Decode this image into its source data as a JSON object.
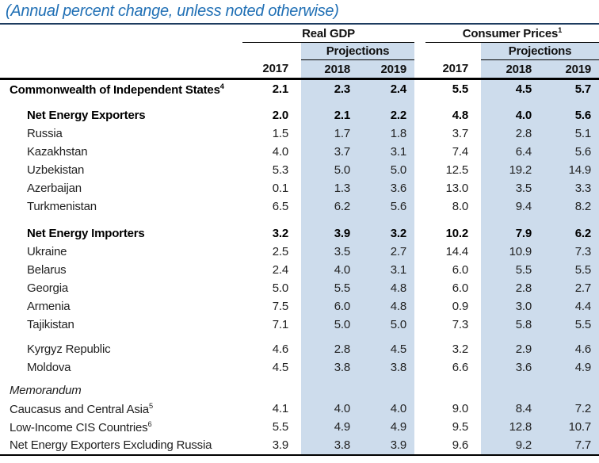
{
  "title": "(Annual percent change, unless noted otherwise)",
  "colors": {
    "title_accent": "#2170b5",
    "projection_band": "#cddcec",
    "rule": "#000000"
  },
  "header": {
    "groups": [
      {
        "label": "Real GDP",
        "sup": ""
      },
      {
        "label": "Consumer Prices",
        "sup": "1"
      }
    ],
    "projections": "Projections",
    "years": [
      "2017",
      "2018",
      "2019"
    ]
  },
  "rows": [
    {
      "label": "Commonwealth of Independent States",
      "sup": "4",
      "bold": true,
      "indent": false,
      "values": [
        "2.1",
        "2.3",
        "2.4",
        "5.5",
        "4.5",
        "5.7"
      ]
    },
    {
      "spacer": 10
    },
    {
      "label": "Net Energy Exporters",
      "sup": "",
      "bold": true,
      "indent": true,
      "values": [
        "2.0",
        "2.1",
        "2.2",
        "4.8",
        "4.0",
        "5.6"
      ]
    },
    {
      "label": "Russia",
      "sup": "",
      "indent": true,
      "values": [
        "1.5",
        "1.7",
        "1.8",
        "3.7",
        "2.8",
        "5.1"
      ]
    },
    {
      "label": "Kazakhstan",
      "sup": "",
      "indent": true,
      "values": [
        "4.0",
        "3.7",
        "3.1",
        "7.4",
        "6.4",
        "5.6"
      ]
    },
    {
      "label": "Uzbekistan",
      "sup": "",
      "indent": true,
      "values": [
        "5.3",
        "5.0",
        "5.0",
        "12.5",
        "19.2",
        "14.9"
      ]
    },
    {
      "label": "Azerbaijan",
      "sup": "",
      "indent": true,
      "values": [
        "0.1",
        "1.3",
        "3.6",
        "13.0",
        "3.5",
        "3.3"
      ]
    },
    {
      "label": "Turkmenistan",
      "sup": "",
      "indent": true,
      "values": [
        "6.5",
        "6.2",
        "5.6",
        "8.0",
        "9.4",
        "8.2"
      ]
    },
    {
      "spacer": 11
    },
    {
      "label": "Net Energy Importers",
      "sup": "",
      "bold": true,
      "indent": true,
      "values": [
        "3.2",
        "3.9",
        "3.2",
        "10.2",
        "7.9",
        "6.2"
      ]
    },
    {
      "label": "Ukraine",
      "sup": "",
      "indent": true,
      "values": [
        "2.5",
        "3.5",
        "2.7",
        "14.4",
        "10.9",
        "7.3"
      ]
    },
    {
      "label": "Belarus",
      "sup": "",
      "indent": true,
      "values": [
        "2.4",
        "4.0",
        "3.1",
        "6.0",
        "5.5",
        "5.5"
      ]
    },
    {
      "label": "Georgia",
      "sup": "",
      "indent": true,
      "values": [
        "5.0",
        "5.5",
        "4.8",
        "6.0",
        "2.8",
        "2.7"
      ]
    },
    {
      "label": "Armenia",
      "sup": "",
      "indent": true,
      "values": [
        "7.5",
        "6.0",
        "4.8",
        "0.9",
        "3.0",
        "4.4"
      ]
    },
    {
      "label": "Tajikistan",
      "sup": "",
      "indent": true,
      "values": [
        "7.1",
        "5.0",
        "5.0",
        "7.3",
        "5.8",
        "5.5"
      ]
    },
    {
      "spacer": 8
    },
    {
      "label": "Kyrgyz Republic",
      "sup": "",
      "indent": true,
      "values": [
        "4.6",
        "2.8",
        "4.5",
        "3.2",
        "2.9",
        "4.6"
      ]
    },
    {
      "label": "Moldova",
      "sup": "",
      "indent": true,
      "values": [
        "4.5",
        "3.8",
        "3.8",
        "6.6",
        "3.6",
        "4.9"
      ]
    },
    {
      "spacer": 6
    },
    {
      "label": "Memorandum",
      "sup": "",
      "italic": true,
      "memo": true,
      "indent": false,
      "values": [
        "",
        "",
        "",
        "",
        "",
        ""
      ]
    },
    {
      "label": "Caucasus and Central Asia",
      "sup": "5",
      "memo": true,
      "indent": false,
      "values": [
        "4.1",
        "4.0",
        "4.0",
        "9.0",
        "8.4",
        "7.2"
      ]
    },
    {
      "label": "Low-Income CIS Countries",
      "sup": "6",
      "memo": true,
      "indent": false,
      "values": [
        "5.5",
        "4.9",
        "4.9",
        "9.5",
        "12.8",
        "10.7"
      ]
    },
    {
      "label": "Net Energy Exporters Excluding Russia",
      "sup": "",
      "memo": true,
      "indent": false,
      "values": [
        "3.9",
        "3.8",
        "3.9",
        "9.6",
        "9.2",
        "7.7"
      ]
    }
  ]
}
